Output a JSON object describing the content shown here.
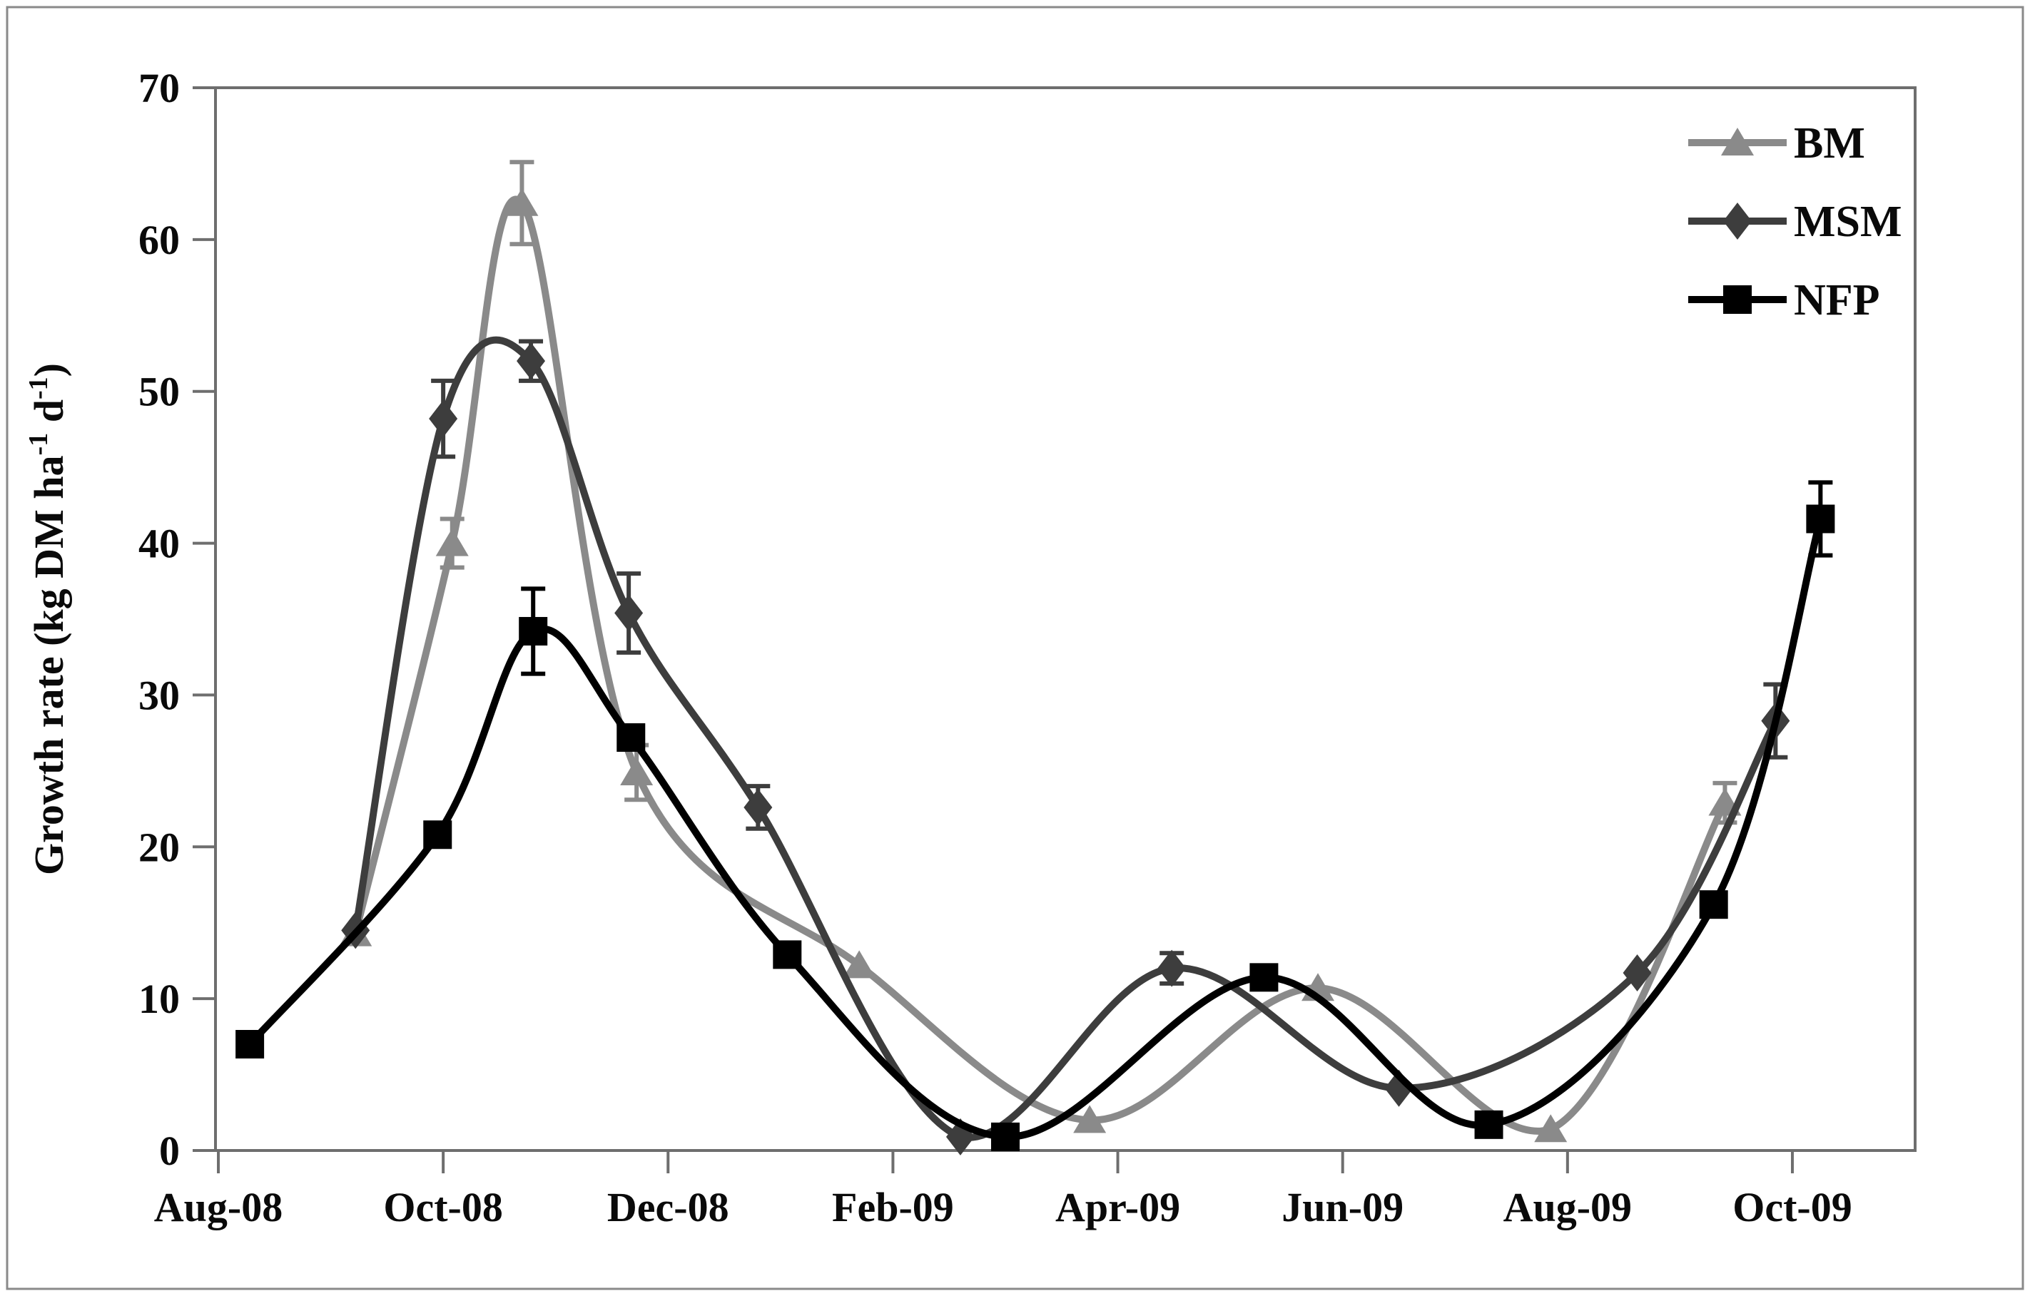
{
  "figure": {
    "background": "#ffffff",
    "border_color": "#8a8a8a"
  },
  "chart_data": {
    "type": "line",
    "title": "",
    "xlabel": "",
    "ylabel_plain": "Growth rate (kg DM ha-1 d-1)",
    "ylabel_parts": [
      {
        "text": "Growth rate (kg DM ha",
        "sup": false
      },
      {
        "text": "-1",
        "sup": true
      },
      {
        "text": " d",
        "sup": false
      },
      {
        "text": "-1",
        "sup": true
      },
      {
        "text": ")",
        "sup": false
      }
    ],
    "ylim": [
      0,
      70
    ],
    "yticks": [
      0,
      10,
      20,
      30,
      40,
      50,
      60,
      70
    ],
    "x_domain_months": [
      0,
      15.1
    ],
    "x_unit": "months after Aug-08 tick",
    "xticks": [
      {
        "m": 0,
        "label": "Aug-08"
      },
      {
        "m": 2,
        "label": "Oct-08"
      },
      {
        "m": 4,
        "label": "Dec-08"
      },
      {
        "m": 6,
        "label": "Feb-09"
      },
      {
        "m": 8,
        "label": "Apr-09"
      },
      {
        "m": 10,
        "label": "Jun-09"
      },
      {
        "m": 12,
        "label": "Aug-09"
      },
      {
        "m": 14,
        "label": "Oct-09"
      }
    ],
    "grid": false,
    "legend_position": "top-right-inside",
    "legend_entries": [
      {
        "label": "BM",
        "marker": "triangle",
        "color": "#8a8a8a"
      },
      {
        "label": "MSM",
        "marker": "diamond",
        "color": "#3d3d3d"
      },
      {
        "label": "NFP",
        "marker": "square",
        "color": "#000000"
      }
    ],
    "series": [
      {
        "name": "BM",
        "marker": "triangle",
        "color": "#8a8a8a",
        "points": [
          {
            "x": 1.22,
            "y": 14.3,
            "e": 0
          },
          {
            "x": 2.08,
            "y": 40.0,
            "e": 1.6
          },
          {
            "x": 2.7,
            "y": 62.4,
            "e": 2.7
          },
          {
            "x": 3.72,
            "y": 24.9,
            "e": 1.8
          },
          {
            "x": 5.7,
            "y": 12.2,
            "e": 0
          },
          {
            "x": 7.75,
            "y": 2.0,
            "e": 0
          },
          {
            "x": 9.78,
            "y": 10.7,
            "e": 0
          },
          {
            "x": 11.85,
            "y": 1.4,
            "e": 0
          },
          {
            "x": 13.4,
            "y": 22.9,
            "e": 1.3
          }
        ]
      },
      {
        "name": "MSM",
        "marker": "diamond",
        "color": "#3d3d3d",
        "points": [
          {
            "x": 1.22,
            "y": 14.5,
            "e": 0
          },
          {
            "x": 2.0,
            "y": 48.2,
            "e": 2.5
          },
          {
            "x": 2.78,
            "y": 52.0,
            "e": 1.3
          },
          {
            "x": 3.65,
            "y": 35.4,
            "e": 2.6
          },
          {
            "x": 4.8,
            "y": 22.6,
            "e": 1.4
          },
          {
            "x": 6.6,
            "y": 0.9,
            "e": 0
          },
          {
            "x": 8.48,
            "y": 12.0,
            "e": 1.0
          },
          {
            "x": 10.5,
            "y": 4.1,
            "e": 0
          },
          {
            "x": 12.62,
            "y": 11.7,
            "e": 0
          },
          {
            "x": 13.85,
            "y": 28.3,
            "e": 2.4
          }
        ]
      },
      {
        "name": "NFP",
        "marker": "square",
        "color": "#000000",
        "points": [
          {
            "x": 0.28,
            "y": 7.0,
            "e": 0
          },
          {
            "x": 1.95,
            "y": 20.8,
            "e": 0
          },
          {
            "x": 2.8,
            "y": 34.2,
            "e": 2.8
          },
          {
            "x": 3.67,
            "y": 27.2,
            "e": 0
          },
          {
            "x": 5.06,
            "y": 12.9,
            "e": 0
          },
          {
            "x": 7.0,
            "y": 0.9,
            "e": 0
          },
          {
            "x": 9.3,
            "y": 11.4,
            "e": 0
          },
          {
            "x": 11.3,
            "y": 1.7,
            "e": 0
          },
          {
            "x": 13.3,
            "y": 16.2,
            "e": 0
          },
          {
            "x": 14.25,
            "y": 41.6,
            "e": 2.4
          }
        ]
      }
    ]
  }
}
